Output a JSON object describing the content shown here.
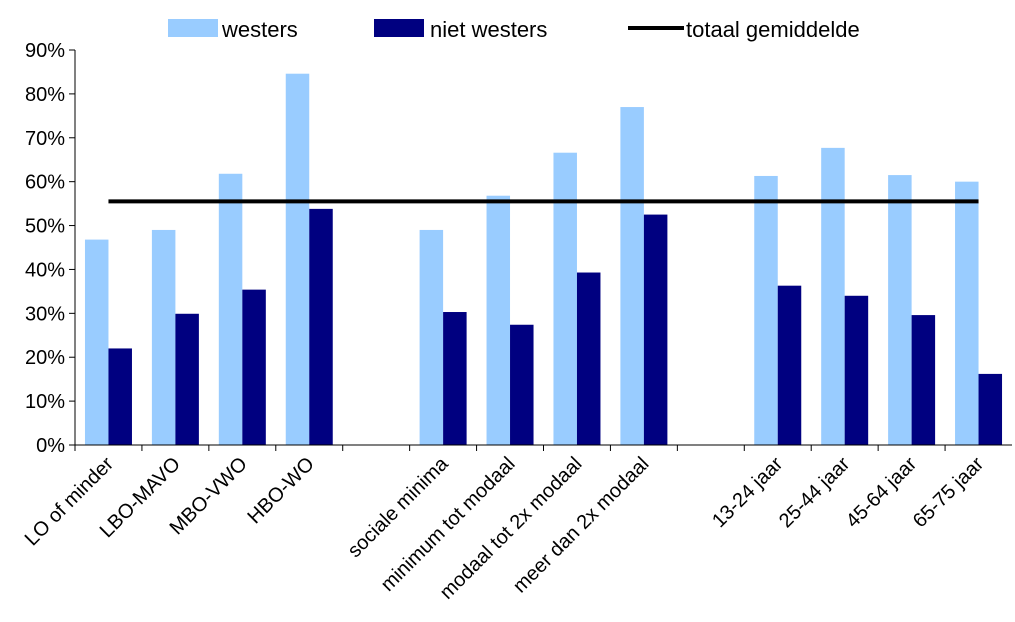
{
  "chart_data": {
    "type": "bar",
    "categories": [
      "LO of minder",
      "LBO-MAVO",
      "MBO-VWO",
      "HBO-WO",
      "",
      "sociale minima",
      "minimum tot modaal",
      "modaal tot 2x modaal",
      "meer dan 2x modaal",
      "",
      "13-24 jaar",
      "25-44 jaar",
      "45-64 jaar",
      "65-75 jaar"
    ],
    "series": [
      {
        "name": "westers",
        "color": "#99ccff",
        "values": [
          46.8,
          49.0,
          61.8,
          84.6,
          null,
          49.0,
          56.8,
          66.6,
          77.0,
          null,
          61.3,
          67.7,
          61.5,
          60.0
        ]
      },
      {
        "name": "niet westers",
        "color": "#000080",
        "values": [
          22.0,
          29.9,
          35.4,
          53.8,
          null,
          30.3,
          27.4,
          39.3,
          52.5,
          null,
          36.3,
          34.0,
          29.6,
          16.2
        ]
      }
    ],
    "reference_line": {
      "name": "totaal gemiddelde",
      "value": 55.5,
      "color": "#000000"
    },
    "ylim": [
      0,
      90
    ],
    "yticks": [
      "0%",
      "10%",
      "20%",
      "30%",
      "40%",
      "50%",
      "60%",
      "70%",
      "80%",
      "90%"
    ],
    "grid": false,
    "legend": "top"
  }
}
